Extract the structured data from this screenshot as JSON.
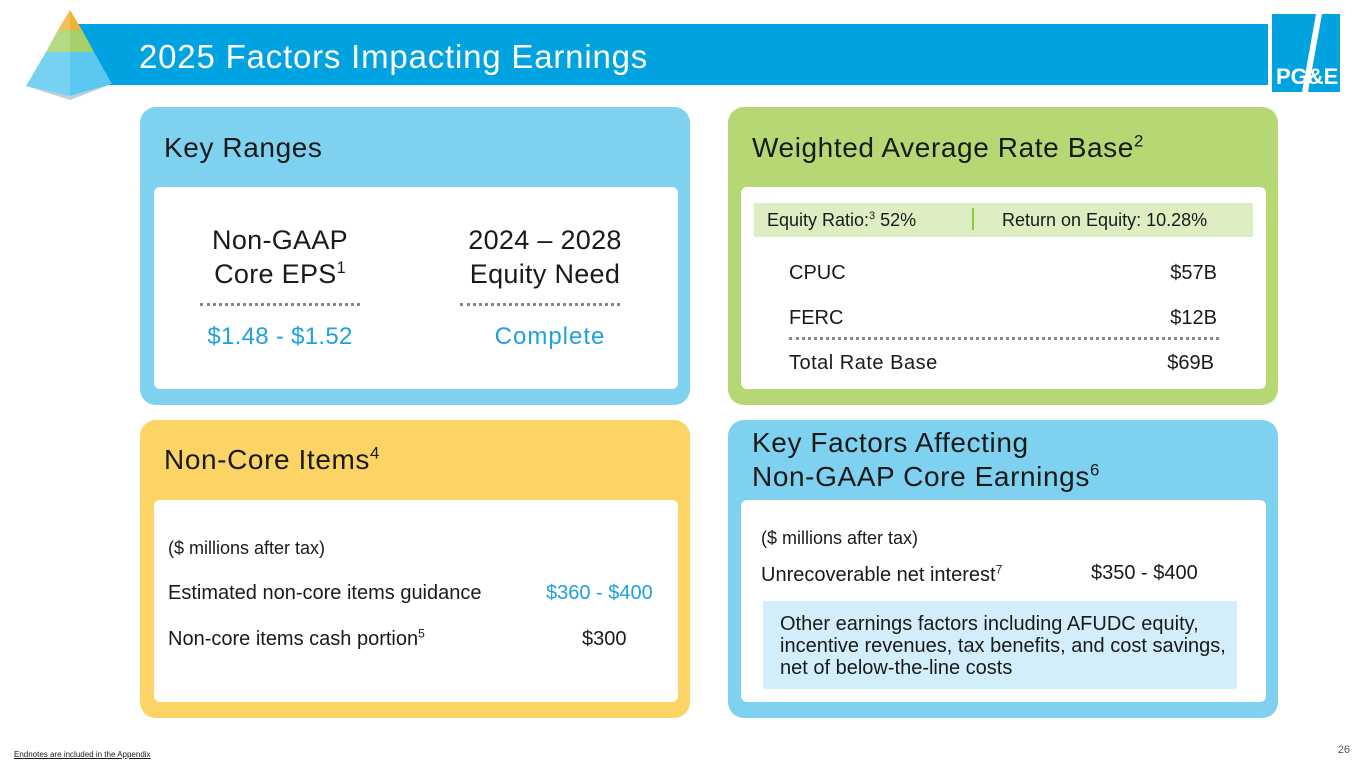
{
  "header": {
    "title": "2025 Factors Impacting Earnings",
    "logo_text": "PG&E"
  },
  "colors": {
    "brand_blue": "#00a3e0",
    "panel_blue": "#7fd1f0",
    "panel_green": "#b5d874",
    "panel_yellow": "#fbd465",
    "value_blue": "#1ea1dc"
  },
  "key_ranges": {
    "title": "Key Ranges",
    "col1": {
      "label_line1": "Non-GAAP",
      "label_line2": "Core EPS",
      "sup": "1",
      "value": "$1.48 - $1.52"
    },
    "col2": {
      "label_line1": "2024 – 2028",
      "label_line2": "Equity Need",
      "value": "Complete"
    }
  },
  "rate_base": {
    "title": "Weighted Average Rate Base",
    "title_sup": "2",
    "equity_ratio_label": "Equity Ratio:",
    "equity_ratio_sup": "3",
    "equity_ratio_value": "52%",
    "roe_label": "Return on Equity: 10.28%",
    "rows": [
      {
        "label": "CPUC",
        "value": "$57B"
      },
      {
        "label": "FERC",
        "value": "$12B"
      }
    ],
    "total": {
      "label": "Total Rate Base",
      "value": "$69B"
    }
  },
  "non_core": {
    "title": "Non-Core Items",
    "title_sup": "4",
    "unit_note": "($ millions after tax)",
    "guidance_label": "Estimated non-core items guidance",
    "guidance_value": "$360 - $400",
    "cash_label": "Non-core items cash portion",
    "cash_sup": "5",
    "cash_value": "$300"
  },
  "key_factors": {
    "title_line1": "Key Factors Affecting",
    "title_line2": "Non-GAAP Core Earnings",
    "title_sup": "6",
    "unit_note": "($ millions after tax)",
    "interest_label": "Unrecoverable net interest",
    "interest_sup": "7",
    "interest_value": "$350 - $400",
    "other_text": "Other earnings factors including AFUDC equity, incentive revenues, tax benefits, and cost savings, net of below-the-line costs"
  },
  "footer": {
    "endnote": "Endnotes are included in the Appendix",
    "page_number": "26"
  }
}
